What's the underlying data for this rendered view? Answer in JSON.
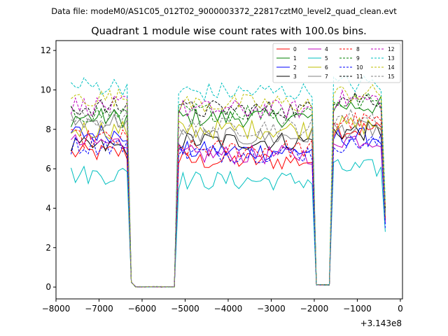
{
  "chart_data": {
    "type": "line",
    "suptitle": "Data file: modeM0/AS1C05_012T02_9000003372_22817cztM0_level2_quad_clean.evt",
    "title": "Quadrant 1 module wise count rates with 100.0s bins.",
    "xlabel": "",
    "ylabel": "",
    "offset_label": "+3.143e8",
    "xlim": [
      -8000,
      50
    ],
    "ylim": [
      -0.6,
      12.5
    ],
    "xticks": [
      -8000,
      -7000,
      -6000,
      -5000,
      -4000,
      -3000,
      -2000,
      -1000,
      0
    ],
    "xtick_labels": [
      "−8000",
      "−7000",
      "−6000",
      "−5000",
      "−4000",
      "−3000",
      "−2000",
      "−1000",
      "0"
    ],
    "yticks": [
      0,
      2,
      4,
      6,
      8,
      10,
      12
    ],
    "ytick_labels": [
      "0",
      "2",
      "4",
      "6",
      "8",
      "10",
      "12"
    ],
    "grid": false,
    "legend_position": "top-right",
    "segments": [
      [
        -7650,
        -6250
      ],
      [
        -6250,
        -5200
      ],
      [
        -5200,
        -2000
      ],
      [
        -2000,
        -1600
      ],
      [
        -1600,
        -350
      ]
    ],
    "series": [
      {
        "name": "0",
        "color": "#ff0000",
        "dash": "solid",
        "levels": [
          6.8,
          0.0,
          6.4,
          0.1,
          8.0
        ],
        "end": 3.5
      },
      {
        "name": "1",
        "color": "#008000",
        "dash": "solid",
        "levels": [
          8.6,
          0.0,
          8.6,
          0.1,
          9.2
        ],
        "end": 3.8
      },
      {
        "name": "2",
        "color": "#0000ff",
        "dash": "solid",
        "levels": [
          7.8,
          0.0,
          6.9,
          0.1,
          7.6
        ],
        "end": 3.2
      },
      {
        "name": "3",
        "color": "#000000",
        "dash": "solid",
        "levels": [
          7.1,
          0.0,
          7.4,
          0.1,
          7.9
        ],
        "end": 3.4
      },
      {
        "name": "4",
        "color": "#bf00bf",
        "dash": "solid",
        "levels": [
          7.3,
          0.0,
          6.7,
          0.1,
          7.5
        ],
        "end": 3.3
      },
      {
        "name": "5",
        "color": "#00bfbf",
        "dash": "solid",
        "levels": [
          5.7,
          0.0,
          5.4,
          0.1,
          6.0
        ],
        "end": 2.8
      },
      {
        "name": "6",
        "color": "#bfbf00",
        "dash": "solid",
        "levels": [
          8.0,
          0.0,
          8.0,
          0.1,
          8.2
        ],
        "end": 3.6
      },
      {
        "name": "7",
        "color": "#808080",
        "dash": "solid",
        "levels": [
          8.4,
          0.0,
          7.6,
          0.1,
          8.0
        ],
        "end": 3.7
      },
      {
        "name": "8",
        "color": "#ff0000",
        "dash": "dashed",
        "levels": [
          7.5,
          0.0,
          7.0,
          0.1,
          8.4
        ],
        "end": 3.5
      },
      {
        "name": "9",
        "color": "#008000",
        "dash": "dashed",
        "levels": [
          8.8,
          0.0,
          8.9,
          0.1,
          9.4
        ],
        "end": 3.9
      },
      {
        "name": "10",
        "color": "#0000ff",
        "dash": "dashed",
        "levels": [
          7.2,
          0.0,
          6.8,
          0.1,
          7.3
        ],
        "end": 3.0
      },
      {
        "name": "11",
        "color": "#000000",
        "dash": "dashed",
        "levels": [
          9.1,
          0.0,
          9.0,
          0.1,
          9.6
        ],
        "end": 4.0
      },
      {
        "name": "12",
        "color": "#bf00bf",
        "dash": "dashed",
        "levels": [
          9.2,
          0.0,
          9.0,
          0.1,
          9.5
        ],
        "end": 4.2
      },
      {
        "name": "13",
        "color": "#00bfbf",
        "dash": "dashed",
        "levels": [
          10.2,
          0.0,
          9.9,
          0.1,
          10.3
        ],
        "end": 4.4
      },
      {
        "name": "14",
        "color": "#bfbf00",
        "dash": "dashed",
        "levels": [
          9.6,
          0.0,
          9.3,
          0.1,
          9.8
        ],
        "end": 4.1
      },
      {
        "name": "15",
        "color": "#808080",
        "dash": "dashed",
        "levels": [
          8.5,
          0.0,
          8.1,
          0.1,
          8.6
        ],
        "end": 3.6
      }
    ]
  }
}
